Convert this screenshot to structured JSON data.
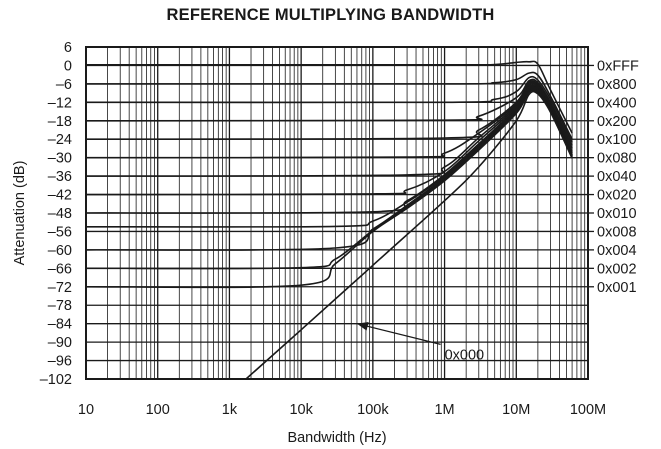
{
  "chart_data": {
    "type": "line",
    "title": "REFERENCE MULTIPLYING BANDWIDTH",
    "xlabel": "Bandwidth (Hz)",
    "ylabel": "Attenuation (dB)",
    "xscale": "log",
    "xlim": [
      10,
      100000000
    ],
    "ylim": [
      -102,
      6
    ],
    "grid": true,
    "x_ticks": [
      {
        "value": 10,
        "label": "10"
      },
      {
        "value": 100,
        "label": "100"
      },
      {
        "value": 1000,
        "label": "1k"
      },
      {
        "value": 10000,
        "label": "10k"
      },
      {
        "value": 100000,
        "label": "100k"
      },
      {
        "value": 1000000,
        "label": "1M"
      },
      {
        "value": 10000000,
        "label": "10M"
      },
      {
        "value": 100000000,
        "label": "100M"
      }
    ],
    "y_ticks": [
      6,
      0,
      -6,
      -12,
      -18,
      -24,
      -30,
      -36,
      -42,
      -48,
      -56,
      -60,
      -66,
      -72,
      -78,
      -84,
      -90,
      -96,
      -102
    ],
    "y_tick_labels": [
      "6",
      "0",
      "–6",
      "–12",
      "–18",
      "–24",
      "–30",
      "–36",
      "–42",
      "–48",
      "–56",
      "–60",
      "–66",
      "–72",
      "–78",
      "–84",
      "–90",
      "–96",
      "–102"
    ],
    "series_label_column": [
      "0xFFF",
      "0x800",
      "0x400",
      "0x200",
      "0x100",
      "0x080",
      "0x040",
      "0x020",
      "0x010",
      "0x008",
      "0x004",
      "0x002",
      "0x001"
    ],
    "annotation": {
      "text": "0x000",
      "x": 1000000,
      "y": -94,
      "arrow_to": {
        "x": 60000,
        "y": -84
      }
    },
    "series": [
      {
        "name": "0xFFF",
        "x": [
          10,
          1000000,
          5000000,
          10000000,
          15000000,
          20000000,
          30000000,
          60000000
        ],
        "y": [
          0.2,
          0.2,
          0.3,
          1.0,
          1.2,
          0.4,
          -8,
          -22
        ]
      },
      {
        "name": "0x800",
        "x": [
          10,
          1000000,
          5000000,
          10000000,
          15000000,
          20000000,
          30000000,
          60000000
        ],
        "y": [
          -6,
          -6,
          -5.6,
          -4.6,
          -2.5,
          -3.2,
          -10,
          -24
        ]
      },
      {
        "name": "0x400",
        "x": [
          10,
          1000000,
          5000000,
          10000000,
          15000000,
          20000000,
          30000000,
          60000000
        ],
        "y": [
          -12,
          -12,
          -11,
          -8.5,
          -4,
          -4.8,
          -11,
          -25
        ]
      },
      {
        "name": "0x200",
        "x": [
          10,
          1000000,
          3000000,
          10000000,
          15000000,
          20000000,
          30000000,
          60000000
        ],
        "y": [
          -18,
          -17.8,
          -16.5,
          -10.5,
          -5,
          -5.6,
          -12,
          -26
        ]
      },
      {
        "name": "0x100",
        "x": [
          10,
          1000000,
          3000000,
          10000000,
          15000000,
          20000000,
          30000000,
          60000000
        ],
        "y": [
          -24,
          -23.6,
          -21,
          -12,
          -5.5,
          -6.2,
          -12.5,
          -27
        ]
      },
      {
        "name": "0x080",
        "x": [
          10,
          300000,
          1000000,
          3000000,
          10000000,
          15000000,
          20000000,
          30000000,
          60000000
        ],
        "y": [
          -30,
          -29.8,
          -28.5,
          -22,
          -12.5,
          -6,
          -6.6,
          -13,
          -28
        ]
      },
      {
        "name": "0x040",
        "x": [
          10,
          300000,
          1000000,
          3000000,
          10000000,
          15000000,
          20000000,
          30000000,
          60000000
        ],
        "y": [
          -36,
          -35.6,
          -33,
          -23.5,
          -13,
          -6.5,
          -7,
          -13.5,
          -28.5
        ]
      },
      {
        "name": "0x020",
        "x": [
          10,
          100000,
          300000,
          1000000,
          3000000,
          10000000,
          15000000,
          20000000,
          30000000,
          60000000
        ],
        "y": [
          -42,
          -41.8,
          -40.5,
          -34.5,
          -24.5,
          -13.5,
          -7,
          -7.5,
          -14,
          -29
        ]
      },
      {
        "name": "0x010",
        "x": [
          10,
          100000,
          300000,
          1000000,
          3000000,
          10000000,
          15000000,
          20000000,
          30000000,
          60000000
        ],
        "y": [
          -48,
          -47.6,
          -44,
          -35.5,
          -25.5,
          -14,
          -7.4,
          -7.8,
          -14.2,
          -29.2
        ]
      },
      {
        "name": "0x008",
        "x": [
          10,
          30000,
          100000,
          300000,
          1000000,
          3000000,
          10000000,
          15000000,
          20000000,
          30000000,
          60000000
        ],
        "y": [
          -54,
          -53.8,
          -51.5,
          -44.5,
          -36,
          -26,
          -14.5,
          -7.8,
          -8,
          -14.4,
          -29.4
        ]
      },
      {
        "name": "0x004",
        "x": [
          10,
          30000,
          100000,
          300000,
          1000000,
          3000000,
          10000000,
          15000000,
          20000000,
          30000000,
          60000000
        ],
        "y": [
          -60,
          -59.6,
          -55,
          -45.5,
          -36.5,
          -26.5,
          -15,
          -8.2,
          -8.3,
          -14.6,
          -29.6
        ]
      },
      {
        "name": "0x002",
        "x": [
          10,
          10000,
          30000,
          100000,
          300000,
          1000000,
          3000000,
          10000000,
          15000000,
          20000000,
          30000000,
          60000000
        ],
        "y": [
          -66,
          -65.8,
          -63,
          -55.5,
          -46,
          -37,
          -27,
          -15.3,
          -8.5,
          -8.6,
          -14.8,
          -29.8
        ]
      },
      {
        "name": "0x001",
        "x": [
          10,
          10000,
          30000,
          100000,
          300000,
          1000000,
          3000000,
          10000000,
          15000000,
          20000000,
          30000000,
          60000000
        ],
        "y": [
          -72,
          -71.5,
          -64.5,
          -56,
          -46.5,
          -37.5,
          -27.5,
          -15.6,
          -8.8,
          -8.9,
          -15,
          -30
        ]
      },
      {
        "name": "0x000",
        "x": [
          1700,
          10000,
          100000,
          1000000,
          3000000,
          10000000,
          15000000,
          20000000,
          30000000,
          60000000
        ],
        "y": [
          -102,
          -86,
          -65,
          -44,
          -33,
          -18,
          -9.5,
          -9.3,
          -15.2,
          -30.2
        ]
      }
    ]
  }
}
